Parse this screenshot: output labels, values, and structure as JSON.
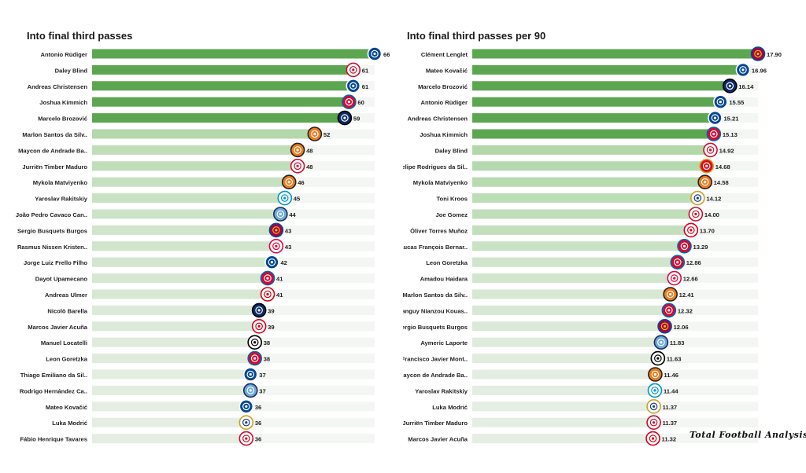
{
  "brand": {
    "text": "Total Football Analysis"
  },
  "chart_data": [
    {
      "type": "bar",
      "orientation": "horizontal",
      "title": "Into final third passes",
      "xlim": [
        0,
        66
      ],
      "color_scale": [
        "#5da651",
        "#9fd095",
        "#e6eee4"
      ],
      "categories": [
        "Antonio Rüdiger",
        "Daley Blind",
        "Andreas Christensen",
        "Joshua Kimmich",
        "Marcelo Brozović",
        "Marlon Santos da Silv..",
        "Maycon de Andrade Ba..",
        "Jurriën Timber Maduro",
        "Mykola Matviyenko",
        "Yaroslav Rakitskiy",
        "João Pedro Cavaco Can..",
        "Sergio Busquets Burgos",
        "Rasmus Nissen Kristen..",
        "Jorge Luiz Frello Filho",
        "Dayot Upamecano",
        "Andreas Ulmer",
        "Nicolò Barella",
        "Marcos Javier Acuña",
        "Manuel Locatelli",
        "Leon  Goretzka",
        "Thiago Emiliano da Sil..",
        "Rodrigo Hernández Ca..",
        "Mateo Kovačić",
        "Luka Modrić",
        "Fábio Henrique Tavares"
      ],
      "values": [
        66,
        61,
        61,
        60,
        59,
        52,
        48,
        48,
        46,
        45,
        44,
        43,
        43,
        42,
        41,
        41,
        39,
        39,
        38,
        38,
        37,
        37,
        36,
        36,
        36
      ],
      "labels": [
        "66",
        "61",
        "61",
        "60",
        "59",
        "52",
        "48",
        "48",
        "46",
        "45",
        "44",
        "43",
        "43",
        "42",
        "41",
        "41",
        "39",
        "39",
        "38",
        "38",
        "37",
        "37",
        "36",
        "36",
        "36"
      ],
      "club_icons": [
        "chelsea-badge-icon",
        "ajax-badge-icon",
        "chelsea-badge-icon",
        "bayern-badge-icon",
        "inter-badge-icon",
        "shakhtar-badge-icon",
        "shakhtar-badge-icon",
        "ajax-badge-icon",
        "shakhtar-badge-icon",
        "zenit-badge-icon",
        "man-city-badge-icon",
        "barcelona-badge-icon",
        "leipzig-badge-icon",
        "chelsea-badge-icon",
        "bayern-badge-icon",
        "salzburg-badge-icon",
        "inter-badge-icon",
        "sevilla-badge-icon",
        "juventus-badge-icon",
        "bayern-badge-icon",
        "chelsea-badge-icon",
        "man-city-badge-icon",
        "chelsea-badge-icon",
        "real-madrid-badge-icon",
        "liverpool-badge-icon"
      ]
    },
    {
      "type": "bar",
      "orientation": "horizontal",
      "title": "Into final third passes per 90",
      "xlim": [
        0,
        17.9
      ],
      "color_scale": [
        "#5da651",
        "#9fd095",
        "#e6eee4"
      ],
      "categories": [
        "Clément Lenglet",
        "Mateo Kovačić",
        "Marcelo Brozović",
        "Antonio Rüdiger",
        "Andreas Christensen",
        "Joshua Kimmich",
        "Daley Blind",
        "Felipe Rodrigues da Sil..",
        "Mykola Matviyenko",
        "Toni Kroos",
        "Joe Gomez",
        "Óliver Torres Muñoz",
        "Lucas François Bernar..",
        "Leon  Goretzka",
        "Amadou Haidara",
        "Marlon Santos da Silv..",
        "Tanguy Nianzou Kouas..",
        "Sergio Busquets Burgos",
        "Aymeric  Laporte",
        "Francisco Javier Mont..",
        "Maycon de Andrade Ba..",
        "Yaroslav Rakitskiy",
        "Luka Modrić",
        "Jurriën Timber Maduro",
        "Marcos Javier Acuña"
      ],
      "values": [
        17.9,
        16.96,
        16.14,
        15.55,
        15.21,
        15.13,
        14.92,
        14.68,
        14.58,
        14.12,
        14.0,
        13.7,
        13.29,
        12.86,
        12.66,
        12.41,
        12.32,
        12.06,
        11.83,
        11.63,
        11.46,
        11.44,
        11.37,
        11.37,
        11.32
      ],
      "labels": [
        "17.90",
        "16.96",
        "16.14",
        "15.55",
        "15.21",
        "15.13",
        "14.92",
        "14.68",
        "14.58",
        "14.12",
        "14.00",
        "13.70",
        "13.29",
        "12.86",
        "12.66",
        "12.41",
        "12.32",
        "12.06",
        "11.83",
        "11.63",
        "11.46",
        "11.44",
        "11.37",
        "11.37",
        "11.32"
      ],
      "club_icons": [
        "barcelona-badge-icon",
        "chelsea-badge-icon",
        "inter-badge-icon",
        "chelsea-badge-icon",
        "chelsea-badge-icon",
        "bayern-badge-icon",
        "ajax-badge-icon",
        "benfica-badge-icon",
        "shakhtar-badge-icon",
        "real-madrid-badge-icon",
        "liverpool-badge-icon",
        "sevilla-badge-icon",
        "bayern-badge-icon",
        "bayern-badge-icon",
        "leipzig-badge-icon",
        "shakhtar-badge-icon",
        "bayern-badge-icon",
        "barcelona-badge-icon",
        "man-city-badge-icon",
        "besiktas-badge-icon",
        "shakhtar-badge-icon",
        "zenit-badge-icon",
        "real-madrid-badge-icon",
        "ajax-badge-icon",
        "sevilla-badge-icon"
      ]
    }
  ]
}
